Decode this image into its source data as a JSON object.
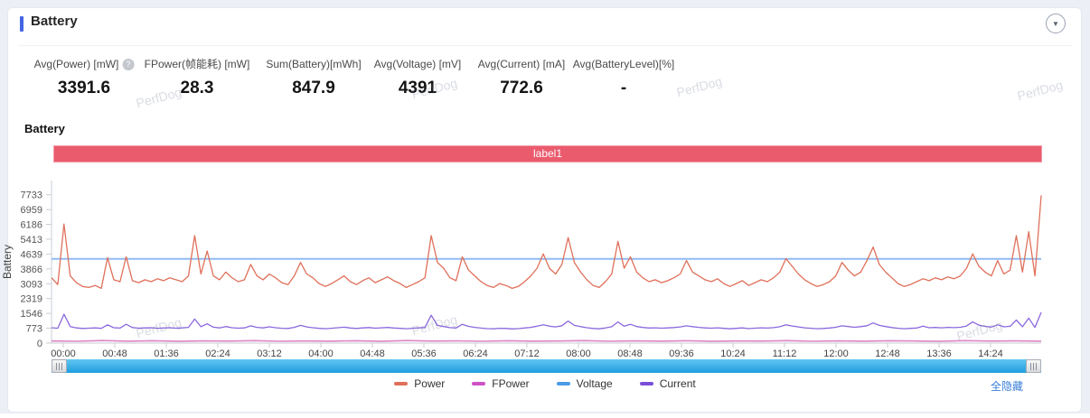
{
  "header": {
    "title": "Battery",
    "collapse_icon": "▼"
  },
  "stats": [
    {
      "label": "Avg(Power) [mW]",
      "value": "3391.6",
      "help": true
    },
    {
      "label": "FPower(帧能耗) [mW]",
      "value": "28.3",
      "help": false
    },
    {
      "label": "Sum(Battery)[mWh]",
      "value": "847.9",
      "help": false
    },
    {
      "label": "Avg(Voltage) [mV]",
      "value": "4391",
      "help": false
    },
    {
      "label": "Avg(Current) [mA]",
      "value": "772.6",
      "help": false
    },
    {
      "label": "Avg(BatteryLevel)[%]",
      "value": "-",
      "help": false
    }
  ],
  "chart_section": {
    "title": "Battery",
    "banner_label": "label1",
    "banner_color": "#ea5b6e",
    "hide_all_label": "全隐藏"
  },
  "watermark": {
    "text": "PerfDog"
  },
  "chart_data": {
    "type": "line",
    "title": "Battery",
    "ylabel": "Battery",
    "xlabel": "",
    "ylim": [
      0,
      8470
    ],
    "grid": false,
    "legend_position": "bottom",
    "yticks": [
      0,
      773,
      1546,
      2319,
      3093,
      3866,
      4639,
      5413,
      6186,
      6959,
      7733
    ],
    "xticklabels": [
      "00:00",
      "00:48",
      "01:36",
      "02:24",
      "03:12",
      "04:00",
      "04:48",
      "05:36",
      "06:24",
      "07:12",
      "08:00",
      "08:48",
      "09:36",
      "10:24",
      "11:12",
      "12:00",
      "12:48",
      "13:36",
      "14:24"
    ],
    "x_unit": "mm:ss",
    "series": [
      {
        "name": "Power",
        "color": "#df705a",
        "line_color": "#df705a",
        "values": [
          3400,
          3050,
          6200,
          3500,
          3150,
          2950,
          2900,
          3000,
          2850,
          4450,
          3300,
          3200,
          4500,
          3250,
          3150,
          3300,
          3200,
          3350,
          3250,
          3400,
          3300,
          3200,
          3500,
          5600,
          3600,
          4800,
          3500,
          3300,
          3700,
          3400,
          3200,
          3300,
          4100,
          3500,
          3300,
          3600,
          3400,
          3150,
          3050,
          3500,
          4200,
          3600,
          3400,
          3100,
          2950,
          3100,
          3300,
          3500,
          3200,
          3050,
          3250,
          3400,
          3150,
          3300,
          3450,
          3250,
          3100,
          2900,
          3050,
          3200,
          3400,
          5600,
          4200,
          3900,
          3400,
          3250,
          4500,
          3800,
          3500,
          3200,
          3000,
          2900,
          3100,
          3000,
          2850,
          2950,
          3200,
          3500,
          3900,
          4650,
          3900,
          3600,
          4100,
          5500,
          4200,
          3700,
          3300,
          3000,
          2900,
          3200,
          3600,
          5300,
          3900,
          4500,
          3700,
          3400,
          3200,
          3300,
          3150,
          3250,
          3400,
          3600,
          4300,
          3700,
          3500,
          3300,
          3200,
          3350,
          3100,
          2950,
          3100,
          3250,
          3000,
          3150,
          3300,
          3200,
          3400,
          3700,
          4400,
          4000,
          3600,
          3300,
          3100,
          2950,
          3050,
          3200,
          3500,
          4200,
          3800,
          3500,
          3700,
          4300,
          5000,
          4100,
          3700,
          3400,
          3100,
          2950,
          3050,
          3200,
          3350,
          3250,
          3400,
          3300,
          3450,
          3350,
          3500,
          3900,
          4650,
          4000,
          3700,
          3500,
          4300,
          3600,
          3800,
          5600,
          3700,
          5800,
          3500,
          7700
        ]
      },
      {
        "name": "FPower",
        "color": "#ce52c6",
        "line_color": "#dd85c6",
        "values": [
          110,
          95,
          130,
          100,
          120,
          90,
          115,
          105,
          125,
          95,
          110,
          100,
          120,
          90,
          130,
          105,
          115,
          95,
          120,
          100,
          110,
          125,
          95,
          115,
          100,
          120,
          90,
          110,
          105,
          125,
          95,
          115,
          100,
          120,
          110,
          90,
          125,
          105,
          115,
          100
        ]
      },
      {
        "name": "Voltage",
        "color": "#4b9be6",
        "line_color": "#8fbcf2",
        "values": [
          4391,
          4391
        ]
      },
      {
        "name": "Current",
        "color": "#7a4fd8",
        "line_color": "#8b68dd",
        "values": [
          800,
          770,
          1500,
          860,
          790,
          760,
          775,
          790,
          765,
          950,
          800,
          780,
          980,
          810,
          775,
          790,
          800,
          770,
          785,
          800,
          775,
          790,
          820,
          1250,
          850,
          1000,
          830,
          790,
          860,
          800,
          775,
          790,
          900,
          820,
          790,
          845,
          800,
          770,
          760,
          820,
          920,
          840,
          800,
          765,
          750,
          770,
          800,
          830,
          785,
          760,
          790,
          810,
          775,
          795,
          815,
          785,
          765,
          750,
          770,
          790,
          815,
          1450,
          920,
          860,
          805,
          785,
          980,
          870,
          820,
          780,
          755,
          745,
          770,
          760,
          740,
          755,
          785,
          820,
          880,
          950,
          880,
          840,
          905,
          1150,
          920,
          855,
          800,
          760,
          745,
          785,
          850,
          1100,
          880,
          980,
          860,
          815,
          785,
          795,
          775,
          790,
          810,
          840,
          900,
          855,
          820,
          790,
          775,
          795,
          765,
          745,
          765,
          790,
          755,
          775,
          795,
          780,
          805,
          850,
          950,
          890,
          840,
          795,
          770,
          750,
          762,
          785,
          825,
          900,
          860,
          825,
          855,
          905,
          1050,
          920,
          860,
          810,
          770,
          750,
          765,
          785,
          880,
          800,
          815,
          795,
          820,
          805,
          825,
          890,
          1100,
          930,
          870,
          835,
          950,
          845,
          875,
          1200,
          850,
          1300,
          820,
          1600
        ]
      }
    ]
  }
}
